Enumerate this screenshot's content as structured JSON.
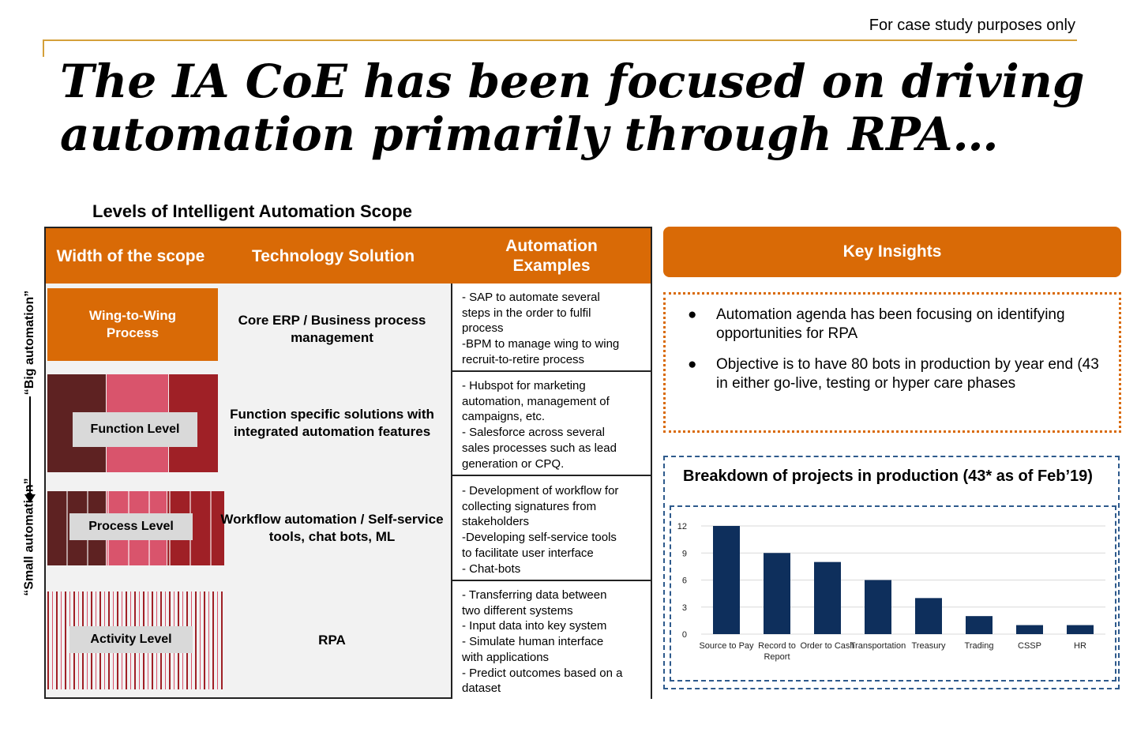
{
  "header": {
    "disclaimer": "For case study purposes only",
    "title_line1": "The IA CoE has been focused on driving",
    "title_line2": "automation primarily through RPA…"
  },
  "scope_table": {
    "section_title": "Levels of Intelligent Automation Scope",
    "columns": [
      "Width of the scope",
      "Technology Solution",
      "Automation Examples"
    ],
    "axis_top_label": "“Big automation”",
    "axis_bottom_label": "“Small automation”",
    "rows": [
      {
        "level": "Wing-to-Wing Process",
        "technology": "Core ERP / Business process management",
        "examples": "- SAP to automate several\nsteps in the order to fulfil\nprocess\n-BPM to manage wing to wing\nrecruit-to-retire process"
      },
      {
        "level": "Function Level",
        "technology": "Function specific solutions with integrated automation features",
        "examples": "- Hubspot for marketing\nautomation, management of\ncampaigns, etc.\n- Salesforce across several\nsales processes such as lead\ngeneration or  CPQ."
      },
      {
        "level": "Process Level",
        "technology": "Workflow automation / Self-service tools, chat bots, ML",
        "examples": "- Development of workflow for\ncollecting signatures from\nstakeholders\n-Developing self-service tools\nto facilitate user interface\n- Chat-bots"
      },
      {
        "level": "Activity Level",
        "technology": "RPA",
        "examples": "- Transferring data between\ntwo different systems\n- Input data into key system\n- Simulate human interface\nwith applications\n- Predict outcomes based on a\ndataset"
      }
    ]
  },
  "key_insights": {
    "title": "Key Insights",
    "bullets": [
      "Automation agenda has been focusing on identifying opportunities for RPA",
      "Objective is to have 80 bots in production by year end (43 in either go-live, testing or hyper care phases"
    ]
  },
  "breakdown": {
    "title": "Breakdown of projects in production (43* as of Feb’19)"
  },
  "colors": {
    "accent": "#d96a06",
    "bar": "#0e2f5c",
    "dark_red": "#5e2222",
    "pink": "#d9546c",
    "red": "#9f2026"
  },
  "chart_data": {
    "type": "bar",
    "title": "Breakdown of projects in production (43* as of Feb’19)",
    "categories": [
      "Source to Pay",
      "Record to Report",
      "Order to Cash",
      "Transportation",
      "Treasury",
      "Trading",
      "CSSP",
      "HR"
    ],
    "values": [
      12,
      9,
      8,
      6,
      4,
      2,
      1,
      1
    ],
    "yticks": [
      0,
      3,
      6,
      9,
      12
    ],
    "ylim": [
      0,
      12
    ],
    "xlabel": "",
    "ylabel": "",
    "grid": true
  }
}
